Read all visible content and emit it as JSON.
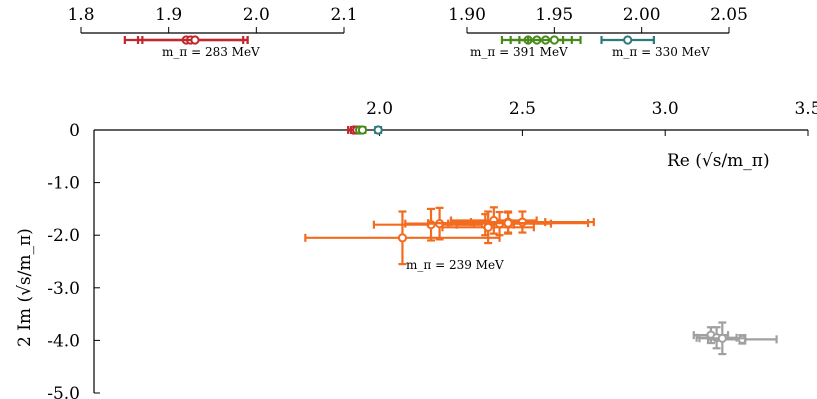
{
  "chart_data": [
    {
      "type": "scatter",
      "name": "main",
      "x_ticks": [
        "2.0",
        "2.5",
        "3.0",
        "3.5"
      ],
      "x_tick_values": [
        2.0,
        2.5,
        3.0,
        3.5
      ],
      "y_ticks": [
        "0",
        "-1.0",
        "-2.0",
        "-3.0",
        "-4.0",
        "-5.0"
      ],
      "y_tick_values": [
        0,
        -1,
        -2,
        -3,
        -4,
        -5
      ],
      "xlim": [
        1.0,
        3.5
      ],
      "ylim": [
        -5.0,
        0.0
      ],
      "xlabel": "Re (√s/m_π)",
      "ylabel": "2 Im (√s/m_π)",
      "annotation": "m_π = 239 MeV",
      "colors": {
        "m239": "#f26b1f",
        "m283": "#c0282d",
        "m391": "#4a8a1c",
        "m330": "#2c7a7b",
        "gray": "#a0a0a0"
      },
      "series": [
        {
          "color": "m283",
          "points": [
            {
              "x": 1.91,
              "y": 0.0,
              "xerr": 0.02,
              "yerr": 0.0
            },
            {
              "x": 1.92,
              "y": 0.0,
              "xerr": 0.02,
              "yerr": 0.0
            }
          ]
        },
        {
          "color": "m391",
          "points": [
            {
              "x": 1.93,
              "y": 0.0,
              "xerr": 0.01,
              "yerr": 0.0
            },
            {
              "x": 1.94,
              "y": 0.0,
              "xerr": 0.01,
              "yerr": 0.0
            }
          ]
        },
        {
          "color": "m330",
          "points": [
            {
              "x": 1.995,
              "y": 0.0,
              "xerr": 0.01,
              "yerr": 0.0
            }
          ]
        },
        {
          "color": "m239",
          "points": [
            {
              "x": 2.08,
              "y": -2.05,
              "xerr": 0.34,
              "yerr": 0.5
            },
            {
              "x": 2.18,
              "y": -1.8,
              "xerr": 0.2,
              "yerr": 0.3
            },
            {
              "x": 2.21,
              "y": -1.78,
              "xerr": 0.12,
              "yerr": 0.3
            },
            {
              "x": 2.37,
              "y": -1.8,
              "xerr": 0.1,
              "yerr": 0.2
            },
            {
              "x": 2.4,
              "y": -1.72,
              "xerr": 0.15,
              "yerr": 0.25
            },
            {
              "x": 2.42,
              "y": -1.78,
              "xerr": 0.18,
              "yerr": 0.22
            },
            {
              "x": 2.45,
              "y": -1.75,
              "xerr": 0.13,
              "yerr": 0.2
            },
            {
              "x": 2.38,
              "y": -1.85,
              "xerr": 0.16,
              "yerr": 0.3
            },
            {
              "x": 2.5,
              "y": -1.75,
              "xerr": 0.25,
              "yerr": 0.2
            },
            {
              "x": 2.45,
              "y": -1.77,
              "xerr": 0.28,
              "yerr": 0.2
            }
          ]
        },
        {
          "color": "gray",
          "points": [
            {
              "x": 3.16,
              "y": -3.9,
              "xerr": 0.06,
              "yerr": 0.15
            },
            {
              "x": 3.18,
              "y": -3.95,
              "xerr": 0.07,
              "yerr": 0.2
            },
            {
              "x": 3.27,
              "y": -3.98,
              "xerr": 0.12,
              "yerr": 0.08
            },
            {
              "x": 3.2,
              "y": -3.96,
              "xerr": 0.08,
              "yerr": 0.3
            }
          ]
        }
      ]
    },
    {
      "type": "scatter",
      "name": "inset-1",
      "x_ticks": [
        "1.8",
        "1.9",
        "2.0",
        "2.1"
      ],
      "x_tick_values": [
        1.8,
        1.9,
        2.0,
        2.1
      ],
      "xlim": [
        1.8,
        2.1
      ],
      "annotation": "m_π = 283 MeV",
      "color": "m283",
      "points": [
        {
          "x": 1.92,
          "xerr": 0.07
        },
        {
          "x": 1.925,
          "xerr": 0.06
        },
        {
          "x": 1.93,
          "xerr": 0.06
        }
      ]
    },
    {
      "type": "scatter",
      "name": "inset-2",
      "x_ticks": [
        "1.90",
        "1.95",
        "2.00",
        "2.05"
      ],
      "x_tick_values": [
        1.9,
        1.95,
        2.0,
        2.05
      ],
      "xlim": [
        1.9,
        2.05
      ],
      "annotations": [
        "m_π = 391 MeV",
        "m_π = 330 MeV"
      ],
      "series": [
        {
          "color": "m391",
          "points": [
            {
              "x": 1.935,
              "xerr": 0.015
            },
            {
              "x": 1.94,
              "xerr": 0.015
            },
            {
              "x": 1.945,
              "xerr": 0.015
            },
            {
              "x": 1.95,
              "xerr": 0.015
            }
          ]
        },
        {
          "color": "m330",
          "points": [
            {
              "x": 1.992,
              "xerr": 0.015
            }
          ]
        }
      ]
    }
  ]
}
